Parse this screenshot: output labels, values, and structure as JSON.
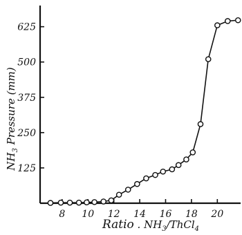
{
  "chart_data": {
    "type": "line",
    "title": "",
    "xlabel_main": "Ratio",
    "xlabel_suffix": " . NH",
    "xlabel_sub": "3",
    "xlabel_tail": "/ThCl",
    "xlabel_tail_sub": "4",
    "ylabel_prefix": "NH",
    "ylabel_sub": "3",
    "ylabel_rest": " Pressure (mm)",
    "xlim": [
      6.3,
      21.8
    ],
    "ylim": [
      0,
      700
    ],
    "xticks": [
      8,
      10,
      12,
      14,
      16,
      18,
      20
    ],
    "xtick_labels": [
      "8",
      "10",
      "12",
      "14",
      "16",
      "18",
      "20"
    ],
    "yticks": [
      125,
      250,
      375,
      500,
      625
    ],
    "ytick_labels": [
      "125",
      "250",
      "375",
      "500",
      "625"
    ],
    "grid": false,
    "legend": "none",
    "series": [
      {
        "marker": "open-circle",
        "x": [
          7.1,
          7.9,
          8.6,
          9.3,
          9.9,
          10.5,
          11.2,
          11.8,
          12.4,
          13.1,
          13.8,
          14.5,
          15.2,
          15.8,
          16.5,
          17.0,
          17.6,
          18.1,
          18.7,
          19.3,
          20.0,
          20.8,
          21.6
        ],
        "y": [
          1,
          2,
          2,
          2,
          3,
          4,
          6,
          10,
          30,
          48,
          68,
          88,
          100,
          112,
          120,
          135,
          155,
          180,
          280,
          510,
          630,
          645,
          648
        ]
      }
    ]
  }
}
